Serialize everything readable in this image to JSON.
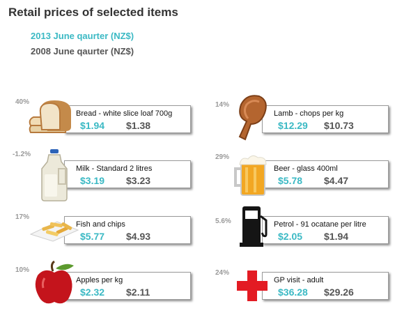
{
  "chart_data": {
    "type": "table",
    "title": "Retail prices of selected items",
    "series": [
      {
        "name": "2013 June qaurter (NZ$)",
        "color": "#3bb9c4"
      },
      {
        "name": "2008 June qaurter (NZ$)",
        "color": "#555555"
      }
    ],
    "items": [
      {
        "label": "Bread - white slice loaf 700g",
        "price_2013": "$1.94",
        "price_2008": "$1.38",
        "change": "40%",
        "icon": "bread-icon"
      },
      {
        "label": "Milk - Standard 2 litres",
        "price_2013": "$3.19",
        "price_2008": "$3.23",
        "change": "-1.2%",
        "icon": "milk-bottle-icon"
      },
      {
        "label": "Fish and chips",
        "price_2013": "$5.77",
        "price_2008": "$4.93",
        "change": "17%",
        "icon": "fish-and-chips-icon"
      },
      {
        "label": "Apples per kg",
        "price_2013": "$2.32",
        "price_2008": "$2.11",
        "change": "10%",
        "icon": "apple-icon"
      },
      {
        "label": "Lamb - chops per kg",
        "price_2013": "$12.29",
        "price_2008": "$10.73",
        "change": "14%",
        "icon": "lamb-chop-icon"
      },
      {
        "label": "Beer - glass 400ml",
        "price_2013": "$5.78",
        "price_2008": "$4.47",
        "change": "29%",
        "icon": "beer-glass-icon"
      },
      {
        "label": "Petrol - 91 ocatane per litre",
        "price_2013": "$2.05",
        "price_2008": "$1.94",
        "change": "5.6%",
        "icon": "petrol-pump-icon"
      },
      {
        "label": "GP visit - adult",
        "price_2013": "$36.28",
        "price_2008": "$29.26",
        "change": "24%",
        "icon": "red-cross-icon"
      }
    ]
  }
}
